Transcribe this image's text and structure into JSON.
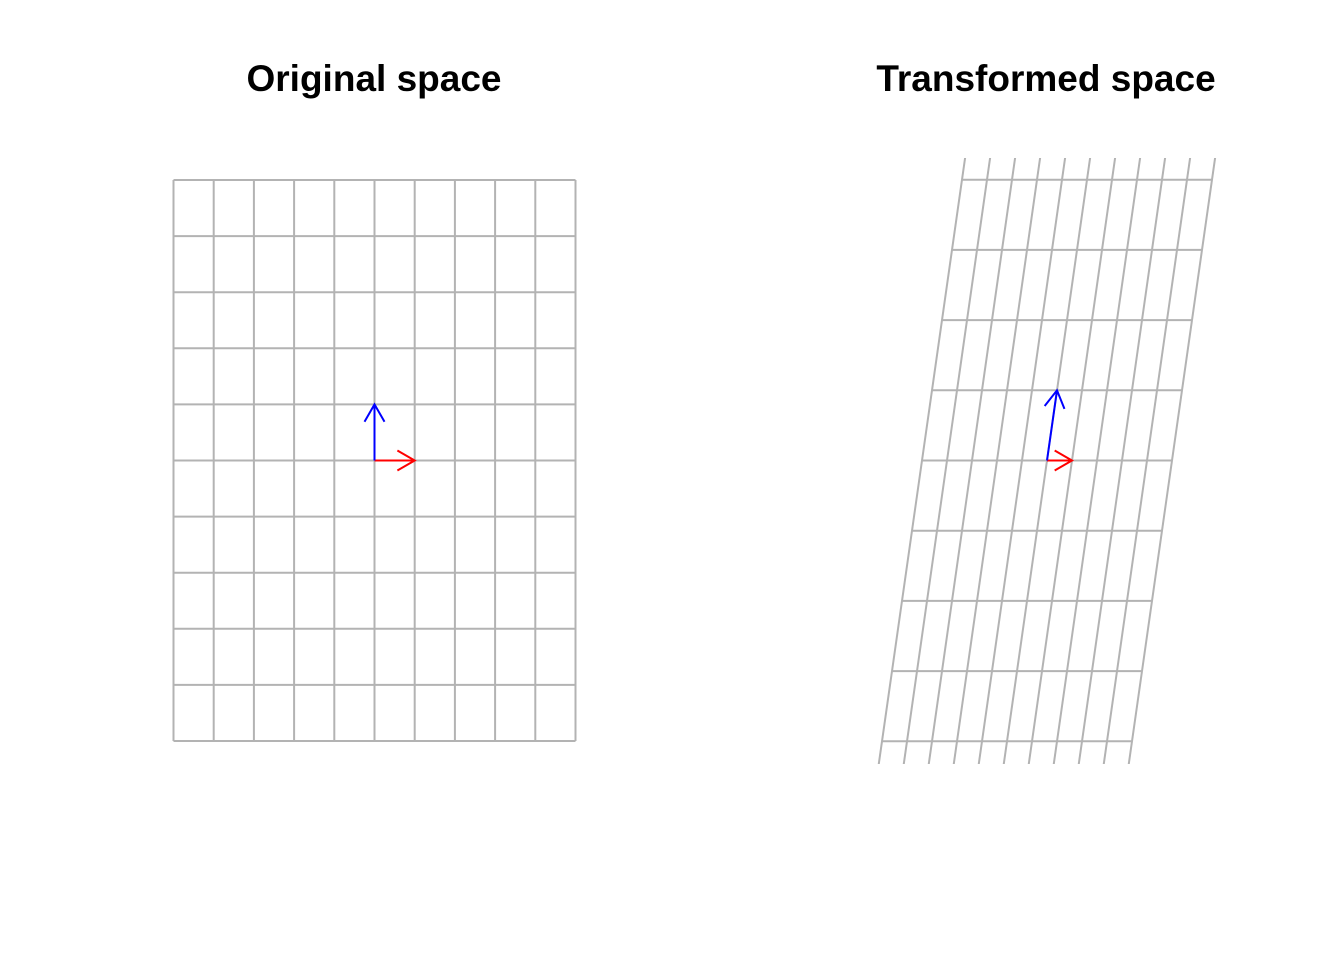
{
  "panels": [
    {
      "title": "Original space",
      "matrix": [
        [
          1,
          0
        ],
        [
          0,
          1
        ]
      ],
      "x_range": [
        -5,
        5
      ],
      "y_range": [
        -5,
        5
      ]
    },
    {
      "title": "Transformed space",
      "matrix": [
        [
          1,
          0.4
        ],
        [
          0,
          1
        ]
      ],
      "x_range": [
        -5,
        5
      ],
      "y_range": [
        -5,
        5
      ]
    }
  ],
  "colors": {
    "grid": "#b3b3b3",
    "basis_i": "#ff0000",
    "basis_j": "#0000ff"
  }
}
